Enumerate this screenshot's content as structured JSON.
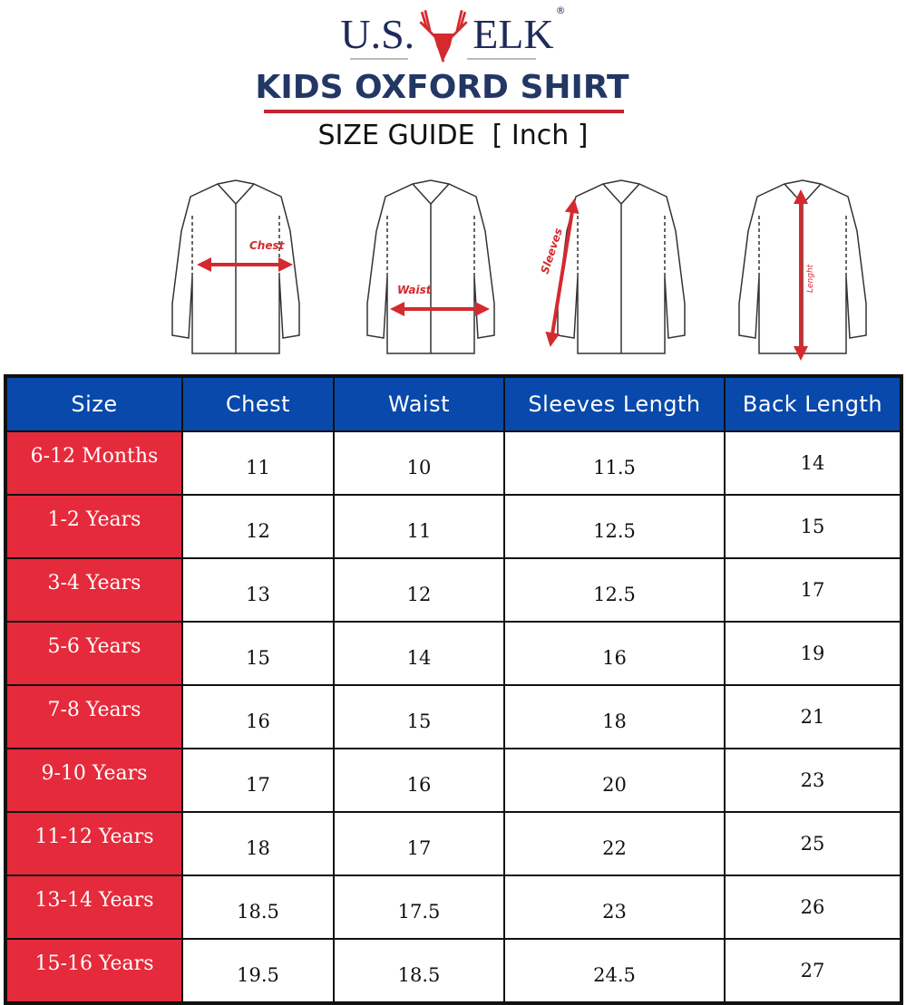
{
  "brand": {
    "logo_text_left": "U.S.",
    "logo_text_right": "ELK",
    "registered": "®"
  },
  "title": "KIDS OXFORD SHIRT",
  "subtitle": "SIZE GUIDE  [ Inch ]",
  "diagram_labels": {
    "chest": "Chest",
    "waist": "Waist",
    "sleeves": "Sleeves",
    "length": "Lenght"
  },
  "colors": {
    "header_bg": "#0849ab",
    "size_bg": "#e52a3b",
    "title": "#223764",
    "arrow": "#d42a2f"
  },
  "table": {
    "headers": [
      "Size",
      "Chest",
      "Waist",
      "Sleeves Length",
      "Back Length"
    ],
    "rows": [
      [
        "6-12 Months",
        "11",
        "10",
        "11.5",
        "14"
      ],
      [
        "1-2 Years",
        "12",
        "11",
        "12.5",
        "15"
      ],
      [
        "3-4 Years",
        "13",
        "12",
        "12.5",
        "17"
      ],
      [
        "5-6 Years",
        "15",
        "14",
        "16",
        "19"
      ],
      [
        "7-8 Years",
        "16",
        "15",
        "18",
        "21"
      ],
      [
        "9-10 Years",
        "17",
        "16",
        "20",
        "23"
      ],
      [
        "11-12 Years",
        "18",
        "17",
        "22",
        "25"
      ],
      [
        "13-14 Years",
        "18.5",
        "17.5",
        "23",
        "26"
      ],
      [
        "15-16 Years",
        "19.5",
        "18.5",
        "24.5",
        "27"
      ]
    ]
  }
}
